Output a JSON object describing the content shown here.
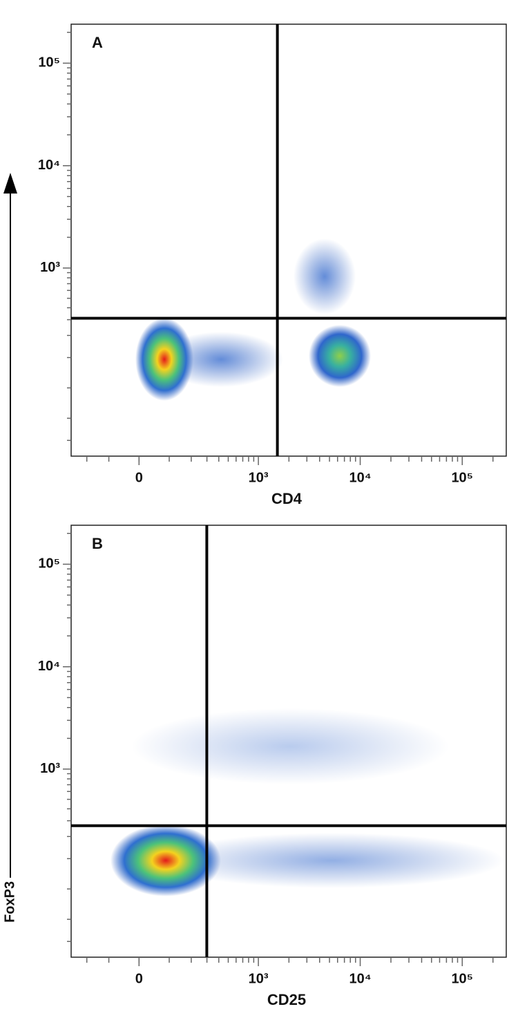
{
  "chart_data": [
    {
      "type": "flow-density",
      "panel_label": "A",
      "xlabel": "CD4",
      "ylabel": "FoxP3",
      "scale": "biexponential",
      "xlim": [
        -300,
        270000
      ],
      "ylim": [
        -300,
        240000
      ],
      "xticks": [
        0,
        {
          "value": 1000,
          "label": "10³"
        },
        {
          "value": 10000,
          "label": "10⁴"
        },
        {
          "value": 100000,
          "label": "10⁵"
        }
      ],
      "yticks": [
        {
          "value": 1000,
          "label": "10³"
        },
        {
          "value": 10000,
          "label": "10⁴"
        },
        {
          "value": 100000,
          "label": "10⁵"
        }
      ],
      "minor_ticks": [
        -200,
        -100,
        0,
        100,
        200,
        300,
        400,
        500,
        600,
        700,
        800,
        900,
        2000,
        3000,
        4000,
        5000,
        6000,
        7000,
        8000,
        9000,
        20000,
        30000,
        40000,
        50000,
        60000,
        70000,
        80000,
        90000,
        200000
      ],
      "gate_x": 1540,
      "gate_y": 311
    },
    {
      "type": "flow-density",
      "panel_label": "B",
      "xlabel": "CD25",
      "scale": "biexponential",
      "xlim": [
        -300,
        270000
      ],
      "ylim": [
        -300,
        240000
      ],
      "xticks": [
        0,
        {
          "value": 1000,
          "label": "10³"
        },
        {
          "value": 10000,
          "label": "10⁴"
        },
        {
          "value": 100000,
          "label": "10⁵"
        }
      ],
      "yticks": [
        {
          "value": 1000,
          "label": "10³"
        },
        {
          "value": 10000,
          "label": "10⁴"
        },
        {
          "value": 100000,
          "label": "10⁵"
        }
      ],
      "minor_ticks": [
        -200,
        -100,
        0,
        100,
        200,
        300,
        400,
        500,
        600,
        700,
        800,
        900,
        2000,
        3000,
        4000,
        5000,
        6000,
        7000,
        8000,
        9000,
        20000,
        30000,
        40000,
        50000,
        60000,
        70000,
        80000,
        90000,
        200000
      ],
      "gate_x": 299,
      "gate_y": 265
    }
  ]
}
